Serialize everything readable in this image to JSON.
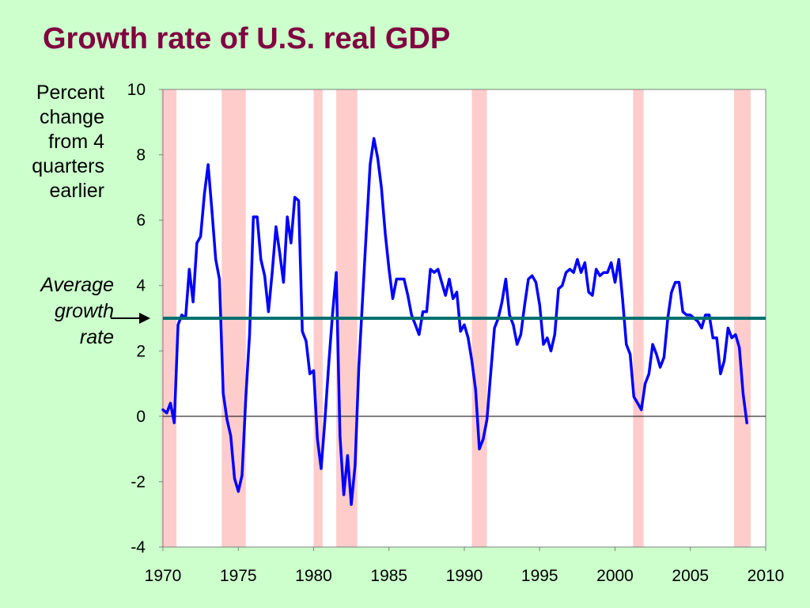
{
  "title": "Growth rate of U.S. real GDP",
  "ylabel_lines": [
    "Percent",
    "change",
    "from 4",
    "quarters",
    "earlier"
  ],
  "average_label_lines": [
    "Average",
    "growth",
    "rate"
  ],
  "colors": {
    "title": "#800040",
    "background": "#ccffcc",
    "plot_background": "#ffffff",
    "series": "#0000ff",
    "average_line": "#007070",
    "recession_shading": "#ffcccc"
  },
  "chart_data": {
    "type": "line",
    "title": "Growth rate of U.S. real GDP",
    "xlim": [
      1970,
      2010
    ],
    "ylim": [
      -4,
      10
    ],
    "x_ticks": [
      "1970",
      "1975",
      "1980",
      "1985",
      "1990",
      "1995",
      "2000",
      "2005",
      "2010"
    ],
    "y_ticks": [
      "-4",
      "-2",
      "0",
      "2",
      "4",
      "6",
      "8",
      "10"
    ],
    "average_growth_rate": 3.0,
    "recessions": [
      [
        1969.9,
        1970.9
      ],
      [
        1973.9,
        1975.5
      ],
      [
        1980.0,
        1980.6
      ],
      [
        1981.5,
        1982.9
      ],
      [
        1990.5,
        1991.5
      ],
      [
        2001.2,
        2001.9
      ],
      [
        2007.9,
        2009.0
      ]
    ],
    "series": [
      {
        "x": [
          1970.0,
          1970.25,
          1970.5,
          1970.75,
          1971.0,
          1971.25,
          1971.5,
          1971.75,
          1972.0,
          1972.25,
          1972.5,
          1972.75,
          1973.0,
          1973.25,
          1973.5,
          1973.75,
          1974.0,
          1974.25,
          1974.5,
          1974.75,
          1975.0,
          1975.25,
          1975.5,
          1975.75,
          1976.0,
          1976.25,
          1976.5,
          1976.75,
          1977.0,
          1977.25,
          1977.5,
          1977.75,
          1978.0,
          1978.25,
          1978.5,
          1978.75,
          1979.0,
          1979.25,
          1979.5,
          1979.75,
          1980.0,
          1980.25,
          1980.5,
          1980.75,
          1981.0,
          1981.25,
          1981.5,
          1981.75,
          1982.0,
          1982.25,
          1982.5,
          1982.75,
          1983.0,
          1983.25,
          1983.5,
          1983.75,
          1984.0,
          1984.25,
          1984.5,
          1984.75,
          1985.0,
          1985.25,
          1985.5,
          1985.75,
          1986.0,
          1986.25,
          1986.5,
          1986.75,
          1987.0,
          1987.25,
          1987.5,
          1987.75,
          1988.0,
          1988.25,
          1988.5,
          1988.75,
          1989.0,
          1989.25,
          1989.5,
          1989.75,
          1990.0,
          1990.25,
          1990.5,
          1990.75,
          1991.0,
          1991.25,
          1991.5,
          1991.75,
          1992.0,
          1992.25,
          1992.5,
          1992.75,
          1993.0,
          1993.25,
          1993.5,
          1993.75,
          1994.0,
          1994.25,
          1994.5,
          1994.75,
          1995.0,
          1995.25,
          1995.5,
          1995.75,
          1996.0,
          1996.25,
          1996.5,
          1996.75,
          1997.0,
          1997.25,
          1997.5,
          1997.75,
          1998.0,
          1998.25,
          1998.5,
          1998.75,
          1999.0,
          1999.25,
          1999.5,
          1999.75,
          2000.0,
          2000.25,
          2000.5,
          2000.75,
          2001.0,
          2001.25,
          2001.5,
          2001.75,
          2002.0,
          2002.25,
          2002.5,
          2002.75,
          2003.0,
          2003.25,
          2003.5,
          2003.75,
          2004.0,
          2004.25,
          2004.5,
          2004.75,
          2005.0,
          2005.25,
          2005.5,
          2005.75,
          2006.0,
          2006.25,
          2006.5,
          2006.75,
          2007.0,
          2007.25,
          2007.5,
          2007.75,
          2008.0,
          2008.25,
          2008.5,
          2008.75
        ],
        "values": [
          0.2,
          0.1,
          0.4,
          -0.2,
          2.8,
          3.1,
          3.0,
          4.5,
          3.5,
          5.3,
          5.5,
          6.8,
          7.7,
          6.3,
          4.8,
          4.2,
          0.7,
          -0.1,
          -0.6,
          -1.9,
          -2.3,
          -1.8,
          0.6,
          2.5,
          6.1,
          6.1,
          4.8,
          4.3,
          3.2,
          4.4,
          5.8,
          5.0,
          4.1,
          6.1,
          5.3,
          6.7,
          6.6,
          2.6,
          2.3,
          1.3,
          1.4,
          -0.7,
          -1.6,
          -0.1,
          1.6,
          3.1,
          4.4,
          -0.6,
          -2.4,
          -1.2,
          -2.7,
          -1.5,
          1.5,
          3.6,
          5.7,
          7.7,
          8.5,
          7.9,
          7.0,
          5.6,
          4.5,
          3.6,
          4.2,
          4.2,
          4.2,
          3.7,
          3.1,
          2.8,
          2.5,
          3.2,
          3.2,
          4.5,
          4.4,
          4.5,
          4.1,
          3.7,
          4.2,
          3.6,
          3.8,
          2.6,
          2.8,
          2.4,
          1.7,
          0.8,
          -1.0,
          -0.7,
          -0.1,
          1.3,
          2.7,
          3.0,
          3.5,
          4.2,
          3.1,
          2.8,
          2.2,
          2.5,
          3.4,
          4.2,
          4.3,
          4.1,
          3.4,
          2.2,
          2.4,
          2.0,
          2.5,
          3.9,
          4.0,
          4.4,
          4.5,
          4.4,
          4.8,
          4.4,
          4.7,
          3.8,
          3.7,
          4.5,
          4.3,
          4.4,
          4.4,
          4.7,
          4.1,
          4.8,
          3.6,
          2.2,
          1.9,
          0.6,
          0.4,
          0.2,
          1.0,
          1.3,
          2.2,
          1.9,
          1.5,
          1.8,
          3.0,
          3.8,
          4.1,
          4.1,
          3.2,
          3.1,
          3.1,
          3.0,
          2.9,
          2.7,
          3.1,
          3.1,
          2.4,
          2.4,
          1.3,
          1.7,
          2.7,
          2.4,
          2.5,
          2.1,
          0.7,
          -0.2
        ]
      }
    ],
    "grid": false,
    "legend": "none"
  }
}
